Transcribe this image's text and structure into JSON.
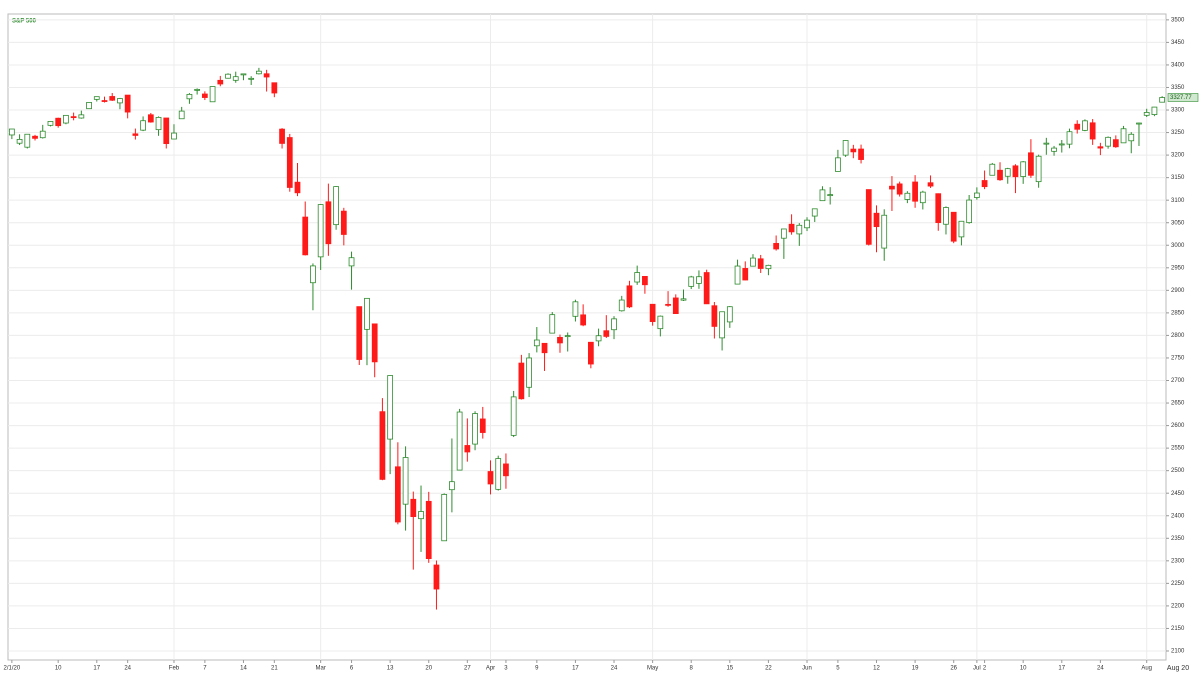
{
  "chart_data": {
    "type": "candlestick",
    "title": "S&P 500",
    "up_color": "#2e8b2e",
    "down_color": "#ff1a1a",
    "grid": true,
    "last_price": 3327.77,
    "x_end_label": "Aug 20",
    "ylim": [
      2080,
      3513
    ],
    "yticks": [
      2100,
      2150,
      2200,
      2250,
      2300,
      2350,
      2400,
      2450,
      2500,
      2550,
      2600,
      2650,
      2700,
      2750,
      2800,
      2850,
      2900,
      2950,
      3000,
      3050,
      3100,
      3150,
      3200,
      3250,
      3300,
      3350,
      3400,
      3450,
      3500
    ],
    "categories": [
      "2/1/20",
      null,
      null,
      null,
      null,
      null,
      "10",
      null,
      null,
      null,
      null,
      "17",
      null,
      null,
      null,
      "24",
      null,
      null,
      null,
      null,
      null,
      "Feb",
      null,
      null,
      null,
      "7",
      null,
      null,
      null,
      null,
      "14",
      null,
      null,
      null,
      "21",
      null,
      null,
      null,
      null,
      null,
      "Mar",
      null,
      null,
      null,
      "6",
      null,
      null,
      null,
      null,
      "13",
      null,
      null,
      null,
      null,
      "20",
      null,
      null,
      null,
      null,
      "27",
      null,
      null,
      "Apr",
      null,
      "3",
      null,
      null,
      null,
      "9",
      null,
      null,
      null,
      null,
      "17",
      null,
      null,
      null,
      null,
      "24",
      null,
      null,
      null,
      null,
      "May",
      null,
      null,
      null,
      null,
      "8",
      null,
      null,
      null,
      null,
      "15",
      null,
      null,
      null,
      null,
      "22",
      null,
      null,
      null,
      null,
      "Jun",
      null,
      null,
      null,
      "5",
      null,
      null,
      null,
      null,
      "12",
      null,
      null,
      null,
      null,
      "19",
      null,
      null,
      null,
      null,
      "26",
      null,
      null,
      "Jul",
      "2",
      null,
      null,
      null,
      null,
      "10",
      null,
      null,
      null,
      null,
      "17",
      null,
      null,
      null,
      null,
      "24",
      null,
      null,
      null,
      null,
      null,
      "Aug",
      null,
      null
    ],
    "ohlc": [
      [
        3244.67,
        3258.14,
        3235.53,
        3257.85
      ],
      [
        3226.36,
        3246.15,
        3222.34,
        3234.85
      ],
      [
        3217.55,
        3246.84,
        3214.64,
        3246.28
      ],
      [
        3241.86,
        3244.91,
        3232.43,
        3237.18
      ],
      [
        3238.59,
        3267.07,
        3236.67,
        3253.05
      ],
      [
        3266.03,
        3275.58,
        3263.67,
        3274.7
      ],
      [
        3281.81,
        3282.99,
        3260.86,
        3265.35
      ],
      [
        3271.13,
        3288.13,
        3268.43,
        3288.13
      ],
      [
        3285.35,
        3294.25,
        3277.19,
        3283.15
      ],
      [
        3282.27,
        3298.66,
        3280.69,
        3289.29
      ],
      [
        3302.97,
        3317.11,
        3302.82,
        3316.81
      ],
      [
        3323.66,
        3329.88,
        3318.86,
        3329.62
      ],
      [
        3321.03,
        3329.79,
        3316.61,
        3320.79
      ],
      [
        3330.02,
        3337.77,
        3320.04,
        3321.75
      ],
      [
        3315.77,
        3326.88,
        3301.87,
        3325.54
      ],
      [
        3333.1,
        3333.18,
        3281.53,
        3295.47
      ],
      [
        3247.16,
        3258.85,
        3234.5,
        3243.63
      ],
      [
        3255.35,
        3285.78,
        3253.22,
        3276.24
      ],
      [
        3289.46,
        3293.47,
        3271.89,
        3273.4
      ],
      [
        3256.45,
        3285.91,
        3242.8,
        3283.66
      ],
      [
        3282.33,
        3282.33,
        3214.68,
        3225.52
      ],
      [
        3235.66,
        3268.44,
        3235.66,
        3248.92
      ],
      [
        3280.61,
        3306.92,
        3280.61,
        3297.59
      ],
      [
        3324.91,
        3337.58,
        3313.75,
        3334.69
      ],
      [
        3344.92,
        3347.96,
        3334.39,
        3345.78
      ],
      [
        3335.54,
        3341.42,
        3322.12,
        3327.71
      ],
      [
        3318.28,
        3352.26,
        3317.77,
        3352.09
      ],
      [
        3365.87,
        3375.63,
        3352.72,
        3357.75
      ],
      [
        3370.5,
        3381.47,
        3369.72,
        3379.45
      ],
      [
        3365.9,
        3385.09,
        3360.52,
        3373.94
      ],
      [
        3378.08,
        3380.69,
        3366.15,
        3380.16
      ],
      [
        3369.04,
        3375.01,
        3355.61,
        3370.29
      ],
      [
        3380.39,
        3393.52,
        3378.83,
        3386.15
      ],
      [
        3380.45,
        3389.15,
        3341.02,
        3373.23
      ],
      [
        3360.5,
        3360.76,
        3328.45,
        3337.75
      ],
      [
        3257.61,
        3259.81,
        3214.65,
        3225.89
      ],
      [
        3238.94,
        3246.99,
        3118.77,
        3128.21
      ],
      [
        3139.9,
        3182.51,
        3108.99,
        3116.39
      ],
      [
        3062.54,
        3097.07,
        2977.39,
        2978.76
      ],
      [
        2916.9,
        2959.72,
        2855.84,
        2954.22
      ],
      [
        2974.28,
        3090.96,
        2945.19,
        3090.23
      ],
      [
        3096.46,
        3136.72,
        2976.63,
        3003.37
      ],
      [
        3045.75,
        3130.97,
        3034.38,
        3130.12
      ],
      [
        3075.7,
        3083.04,
        2999.83,
        3023.94
      ],
      [
        2954.2,
        2985.93,
        2901.54,
        2972.37
      ],
      [
        2863.89,
        2863.89,
        2734.43,
        2746.56
      ],
      [
        2813.48,
        2882.59,
        2734,
        2882.23
      ],
      [
        2825.6,
        2825.6,
        2707.22,
        2741.38
      ],
      [
        2630.86,
        2660.95,
        2478.86,
        2480.64
      ],
      [
        2569.99,
        2711.33,
        2492.37,
        2711.02
      ],
      [
        2508.59,
        2562.98,
        2380.94,
        2386.13
      ],
      [
        2425.66,
        2553.93,
        2367.04,
        2529.19
      ],
      [
        2436.5,
        2453.57,
        2280.52,
        2398.1
      ],
      [
        2393.48,
        2466.97,
        2319.78,
        2409.39
      ],
      [
        2431.94,
        2453.01,
        2295.56,
        2304.92
      ],
      [
        2290.71,
        2300.73,
        2191.86,
        2237.4
      ],
      [
        2344.44,
        2449.71,
        2344.44,
        2447.33
      ],
      [
        2457.77,
        2571.42,
        2407.53,
        2475.56
      ],
      [
        2501.29,
        2637.01,
        2500.72,
        2630.07
      ],
      [
        2555.87,
        2615.91,
        2520.02,
        2541.47
      ],
      [
        2558.98,
        2631.8,
        2545.28,
        2626.65
      ],
      [
        2614.69,
        2641.39,
        2571.15,
        2584.59
      ],
      [
        2498.08,
        2522.75,
        2447.49,
        2470.5
      ],
      [
        2458.54,
        2533.22,
        2455.79,
        2526.9
      ],
      [
        2514.92,
        2538.18,
        2459.96,
        2488.65
      ],
      [
        2578.28,
        2676.85,
        2574.57,
        2663.68
      ],
      [
        2738.65,
        2756.89,
        2657.67,
        2659.41
      ],
      [
        2685,
        2760.75,
        2663.3,
        2749.98
      ],
      [
        2776.99,
        2818.57,
        2762.36,
        2789.82
      ],
      [
        2782.46,
        2782.46,
        2721.17,
        2761.63
      ],
      [
        2805.1,
        2851.85,
        2805.1,
        2846.06
      ],
      [
        2795.64,
        2801.88,
        2761.54,
        2783.36
      ],
      [
        2799.34,
        2806.51,
        2764.32,
        2799.55
      ],
      [
        2842.43,
        2879.22,
        2830.88,
        2874.56
      ],
      [
        2845.62,
        2868.98,
        2820.43,
        2823.16
      ],
      [
        2784.81,
        2785.54,
        2727.1,
        2736.56
      ],
      [
        2787.89,
        2815.1,
        2775.95,
        2799.31
      ],
      [
        2810.42,
        2844.9,
        2794.26,
        2797.8
      ],
      [
        2812.64,
        2842.71,
        2791.76,
        2836.74
      ],
      [
        2854.65,
        2887.72,
        2852.89,
        2878.48
      ],
      [
        2909.96,
        2921.15,
        2860.71,
        2863.39
      ],
      [
        2918.46,
        2954.86,
        2912.16,
        2939.51
      ],
      [
        2930.91,
        2930.91,
        2892.47,
        2912.43
      ],
      [
        2869.09,
        2869.09,
        2821.61,
        2830.71
      ],
      [
        2815.01,
        2844.24,
        2797.85,
        2842.74
      ],
      [
        2868.88,
        2898.23,
        2863.55,
        2868.44
      ],
      [
        2883.14,
        2891.11,
        2847.65,
        2848.42
      ],
      [
        2878.26,
        2901.92,
        2876.48,
        2881.19
      ],
      [
        2908.83,
        2932.16,
        2902.88,
        2929.8
      ],
      [
        2915.46,
        2944.25,
        2903.44,
        2930.19
      ],
      [
        2939.5,
        2945.82,
        2869.59,
        2870.12
      ],
      [
        2865.86,
        2874.14,
        2793.15,
        2820
      ],
      [
        2794.54,
        2852.8,
        2766.64,
        2852.5
      ],
      [
        2829.95,
        2865.01,
        2816.78,
        2863.7
      ],
      [
        2913.86,
        2968.09,
        2913.86,
        2953.91
      ],
      [
        2948.59,
        2964.21,
        2922.35,
        2922.94
      ],
      [
        2953.63,
        2980.29,
        2953.63,
        2971.61
      ],
      [
        2969.95,
        2978.5,
        2938.57,
        2948.51
      ],
      [
        2948.05,
        2956.76,
        2933.59,
        2955.45
      ],
      [
        3004.08,
        3021.72,
        2988.17,
        2991.77
      ],
      [
        3015.65,
        3036.25,
        2969.75,
        3036.13
      ],
      [
        3046.61,
        3068.67,
        3023.4,
        3029.73
      ],
      [
        3025.17,
        3049.17,
        2998.61,
        3044.31
      ],
      [
        3038.78,
        3062.18,
        3031.54,
        3055.73
      ],
      [
        3064.78,
        3081.07,
        3051.64,
        3080.82
      ],
      [
        3098.9,
        3130.94,
        3098.9,
        3122.87
      ],
      [
        3111.56,
        3128.91,
        3090.41,
        3112.35
      ],
      [
        3163.84,
        3211.72,
        3163.84,
        3193.93
      ],
      [
        3199.92,
        3233.13,
        3196,
        3232.39
      ],
      [
        3213.32,
        3222.71,
        3193.11,
        3207.18
      ],
      [
        3213.42,
        3223.27,
        3181.49,
        3190.14
      ],
      [
        3123.53,
        3123.53,
        2999.49,
        3002.1
      ],
      [
        3071.04,
        3088.42,
        2984.47,
        3041.31
      ],
      [
        2993.76,
        3079.76,
        2965.66,
        3066.59
      ],
      [
        3131,
        3153.45,
        3076.06,
        3124.74
      ],
      [
        3136.13,
        3141.16,
        3108.03,
        3113.49
      ],
      [
        3101.64,
        3120,
        3093.51,
        3115.34
      ],
      [
        3140.29,
        3155.53,
        3083.11,
        3097.74
      ],
      [
        3094.42,
        3120.92,
        3079.39,
        3117.86
      ],
      [
        3138.7,
        3154.9,
        3127.12,
        3131.29
      ],
      [
        3114.4,
        3115.01,
        3032.13,
        3050.33
      ],
      [
        3046.6,
        3086.25,
        3024.01,
        3083.76
      ],
      [
        3073.2,
        3073.73,
        3004.63,
        3009.05
      ],
      [
        3018.59,
        3053.89,
        2999.74,
        3053.24
      ],
      [
        3050.2,
        3111.51,
        3047.83,
        3100.29
      ],
      [
        3105.92,
        3128.44,
        3101.17,
        3115.86
      ],
      [
        3143.64,
        3165.81,
        3124.52,
        3130.01
      ],
      [
        3155.29,
        3182.59,
        3155.29,
        3179.72
      ],
      [
        3166.44,
        3184.15,
        3142.93,
        3145.32
      ],
      [
        3153.07,
        3171.8,
        3136.53,
        3169.94
      ],
      [
        3176.17,
        3179.78,
        3115.7,
        3152.05
      ],
      [
        3152.47,
        3186.82,
        3136.22,
        3185.04
      ],
      [
        3205.08,
        3235.32,
        3149.43,
        3155.22
      ],
      [
        3141.11,
        3200.95,
        3127.66,
        3197.52
      ],
      [
        3225.98,
        3238.28,
        3200.76,
        3226.56
      ],
      [
        3208.36,
        3220.39,
        3198.59,
        3215.57
      ],
      [
        3224.21,
        3233.52,
        3205.65,
        3224.73
      ],
      [
        3224.29,
        3258.61,
        3215.16,
        3251.84
      ],
      [
        3268.52,
        3277.29,
        3247.77,
        3257.3
      ],
      [
        3254.86,
        3279.32,
        3253.1,
        3276.02
      ],
      [
        3271.64,
        3279.99,
        3222.66,
        3235.66
      ],
      [
        3218.58,
        3227.26,
        3200.05,
        3215.63
      ],
      [
        3219.84,
        3241.43,
        3214.25,
        3239.41
      ],
      [
        3234.27,
        3243.72,
        3216.17,
        3218.44
      ],
      [
        3227.22,
        3264.74,
        3227.22,
        3258.44
      ],
      [
        3231.76,
        3250.92,
        3204.13,
        3246.22
      ],
      [
        3270.45,
        3272.17,
        3220.26,
        3271.12
      ],
      [
        3288.26,
        3302.73,
        3284.53,
        3294.61
      ],
      [
        3289.92,
        3306.84,
        3286.37,
        3306.51
      ],
      [
        3317.37,
        3330.77,
        3317.37,
        3327.77
      ]
    ]
  }
}
